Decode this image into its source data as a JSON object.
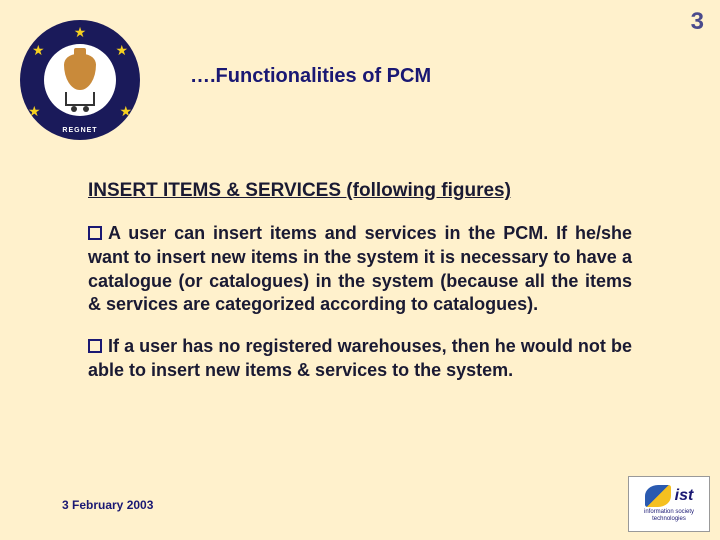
{
  "page_number": "3",
  "slide_title": "….Functionalities of PCM",
  "section_heading": "INSERT ITEMS & SERVICES (following figures)",
  "bullets": [
    "A user can insert items and services in the PCM. If he/she want to insert new items in the system it is necessary to have a catalogue (or catalogues) in the system (because all the items & services are categorized according to catalogues).",
    "If a user has no registered warehouses, then he would not be able to insert new items & services to the system."
  ],
  "footer_date": "3 February  2003",
  "logo": {
    "ring_text": "REGNET"
  },
  "ist": {
    "label": "ist",
    "sub": "information society technologies"
  },
  "colors": {
    "background": "#fff1cc",
    "title": "#1a1873",
    "body_text": "#1a1a33",
    "bullet_border": "#1a1873"
  }
}
